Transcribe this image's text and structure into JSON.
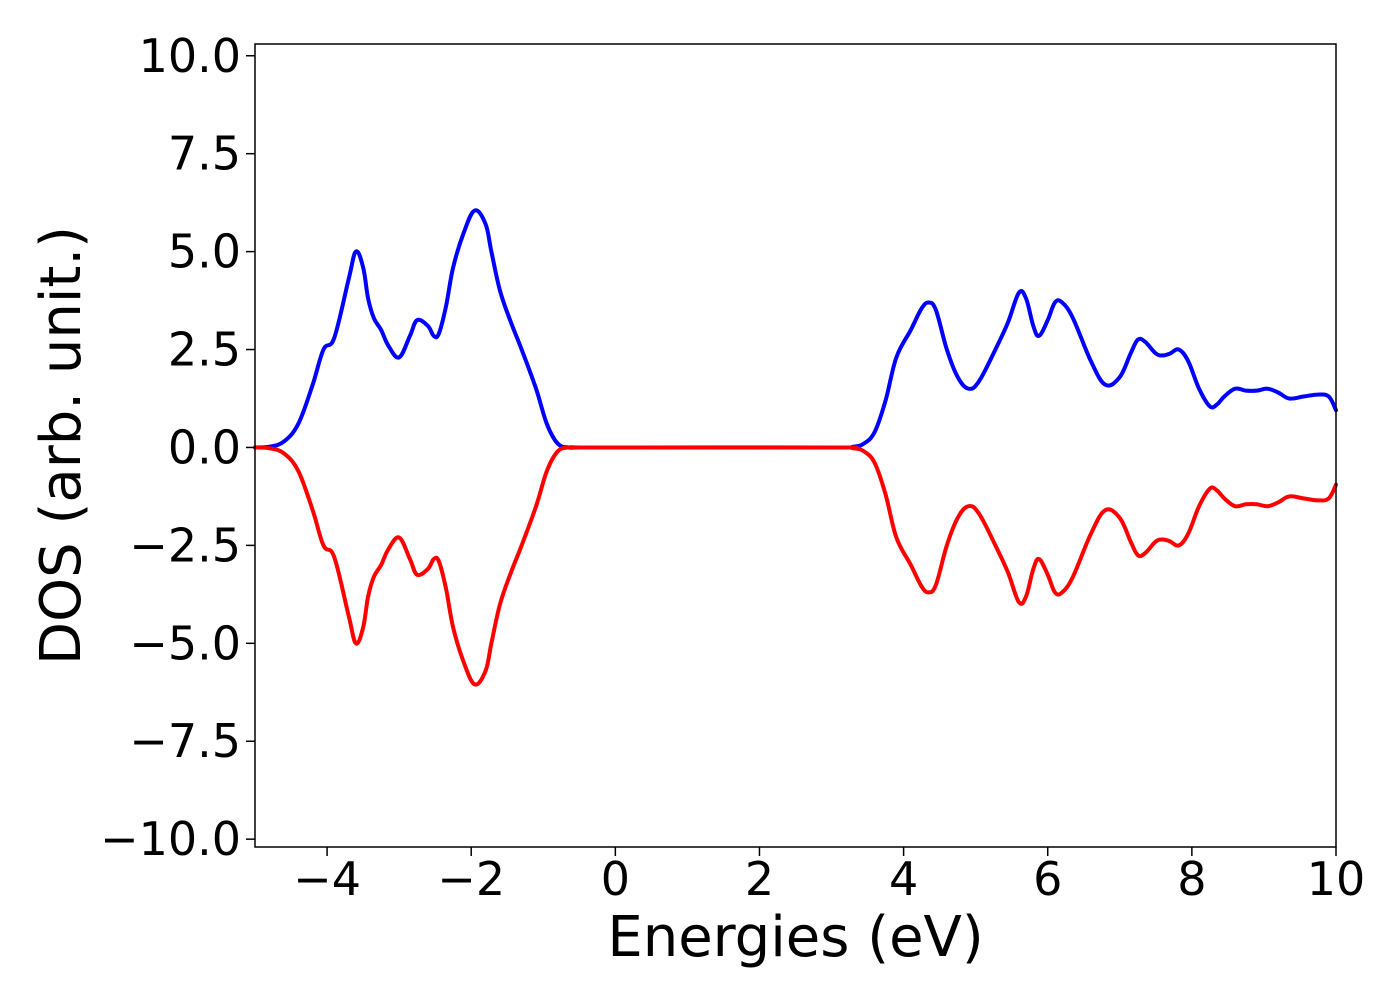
{
  "chart_data": {
    "type": "line",
    "title": "",
    "xlabel": "Energies (eV)",
    "ylabel": "DOS (arb. unit.)",
    "xlim": [
      -5,
      10
    ],
    "ylim": [
      -10.2,
      10.3
    ],
    "grid": false,
    "legend": "none",
    "x_ticks": [
      -4,
      -2,
      0,
      2,
      4,
      6,
      8,
      10
    ],
    "x_tick_labels": [
      "−4",
      "−2",
      "0",
      "2",
      "4",
      "6",
      "8",
      "10"
    ],
    "y_ticks": [
      10,
      7.5,
      5,
      2.5,
      0,
      -2.5,
      -5,
      -7.5,
      -10
    ],
    "y_tick_labels": [
      "10.0",
      "7.5",
      "5.0",
      "2.5",
      "0.0",
      "−2.5",
      "−5.0",
      "−7.5",
      "−10.0"
    ],
    "series": [
      {
        "color": "#0000ff",
        "x": [
          -5.0,
          -4.8,
          -4.6,
          -4.4,
          -4.2,
          -4.05,
          -3.9,
          -3.7,
          -3.6,
          -3.5,
          -3.43,
          -3.35,
          -3.25,
          -3.15,
          -3.0,
          -2.85,
          -2.75,
          -2.6,
          -2.52,
          -2.45,
          -2.35,
          -2.25,
          -2.1,
          -1.95,
          -1.8,
          -1.72,
          -1.6,
          -1.45,
          -1.3,
          -1.1,
          -0.95,
          -0.8,
          -0.65,
          -0.5,
          0.0,
          3.0,
          3.3,
          3.45,
          3.6,
          3.75,
          3.9,
          4.1,
          4.25,
          4.35,
          4.45,
          4.6,
          4.75,
          4.9,
          5.05,
          5.3,
          5.45,
          5.6,
          5.7,
          5.8,
          5.88,
          6.0,
          6.1,
          6.2,
          6.35,
          6.6,
          6.8,
          7.0,
          7.15,
          7.25,
          7.35,
          7.5,
          7.6,
          7.7,
          7.82,
          7.95,
          8.1,
          8.25,
          8.35,
          8.45,
          8.6,
          8.75,
          8.9,
          9.05,
          9.2,
          9.35,
          9.55,
          9.75,
          9.9,
          10.0
        ],
        "y": [
          0.0,
          0.02,
          0.15,
          0.6,
          1.6,
          2.5,
          2.8,
          4.3,
          5.0,
          4.6,
          3.8,
          3.3,
          3.0,
          2.6,
          2.3,
          2.85,
          3.25,
          3.1,
          2.85,
          2.9,
          3.6,
          4.6,
          5.5,
          6.05,
          5.7,
          5.0,
          4.0,
          3.2,
          2.5,
          1.5,
          0.6,
          0.1,
          0.0,
          0.0,
          0.0,
          0.0,
          0.02,
          0.1,
          0.4,
          1.2,
          2.3,
          3.0,
          3.55,
          3.7,
          3.5,
          2.5,
          1.8,
          1.5,
          1.7,
          2.6,
          3.2,
          3.95,
          3.8,
          3.1,
          2.85,
          3.25,
          3.7,
          3.7,
          3.3,
          2.2,
          1.6,
          1.8,
          2.4,
          2.75,
          2.7,
          2.4,
          2.35,
          2.4,
          2.5,
          2.2,
          1.5,
          1.05,
          1.1,
          1.3,
          1.5,
          1.45,
          1.45,
          1.5,
          1.4,
          1.25,
          1.3,
          1.35,
          1.3,
          0.95
        ]
      },
      {
        "color": "#ff0000",
        "x": [
          -5.0,
          -4.8,
          -4.6,
          -4.4,
          -4.2,
          -4.05,
          -3.9,
          -3.7,
          -3.6,
          -3.5,
          -3.43,
          -3.35,
          -3.25,
          -3.15,
          -3.0,
          -2.85,
          -2.75,
          -2.6,
          -2.52,
          -2.45,
          -2.35,
          -2.25,
          -2.1,
          -1.95,
          -1.8,
          -1.72,
          -1.6,
          -1.45,
          -1.3,
          -1.1,
          -0.95,
          -0.8,
          -0.65,
          -0.5,
          0.0,
          3.0,
          3.3,
          3.45,
          3.6,
          3.75,
          3.9,
          4.1,
          4.25,
          4.35,
          4.45,
          4.6,
          4.75,
          4.9,
          5.05,
          5.3,
          5.45,
          5.6,
          5.7,
          5.8,
          5.88,
          6.0,
          6.1,
          6.2,
          6.35,
          6.6,
          6.8,
          7.0,
          7.15,
          7.25,
          7.35,
          7.5,
          7.6,
          7.7,
          7.82,
          7.95,
          8.1,
          8.25,
          8.35,
          8.45,
          8.6,
          8.75,
          8.9,
          9.05,
          9.2,
          9.35,
          9.55,
          9.75,
          9.9,
          10.0
        ],
        "y": [
          0.0,
          -0.02,
          -0.15,
          -0.6,
          -1.6,
          -2.5,
          -2.8,
          -4.3,
          -5.0,
          -4.6,
          -3.8,
          -3.3,
          -3.0,
          -2.6,
          -2.3,
          -2.85,
          -3.25,
          -3.1,
          -2.85,
          -2.9,
          -3.6,
          -4.6,
          -5.5,
          -6.05,
          -5.7,
          -5.0,
          -4.0,
          -3.2,
          -2.5,
          -1.5,
          -0.6,
          -0.1,
          0.0,
          0.0,
          0.0,
          0.0,
          -0.02,
          -0.1,
          -0.4,
          -1.2,
          -2.3,
          -3.0,
          -3.55,
          -3.7,
          -3.5,
          -2.5,
          -1.8,
          -1.5,
          -1.7,
          -2.6,
          -3.2,
          -3.95,
          -3.8,
          -3.1,
          -2.85,
          -3.25,
          -3.7,
          -3.7,
          -3.3,
          -2.2,
          -1.6,
          -1.8,
          -2.4,
          -2.75,
          -2.7,
          -2.4,
          -2.35,
          -2.4,
          -2.5,
          -2.2,
          -1.5,
          -1.05,
          -1.1,
          -1.3,
          -1.5,
          -1.45,
          -1.45,
          -1.5,
          -1.4,
          -1.25,
          -1.3,
          -1.35,
          -1.3,
          -0.95
        ]
      }
    ]
  }
}
